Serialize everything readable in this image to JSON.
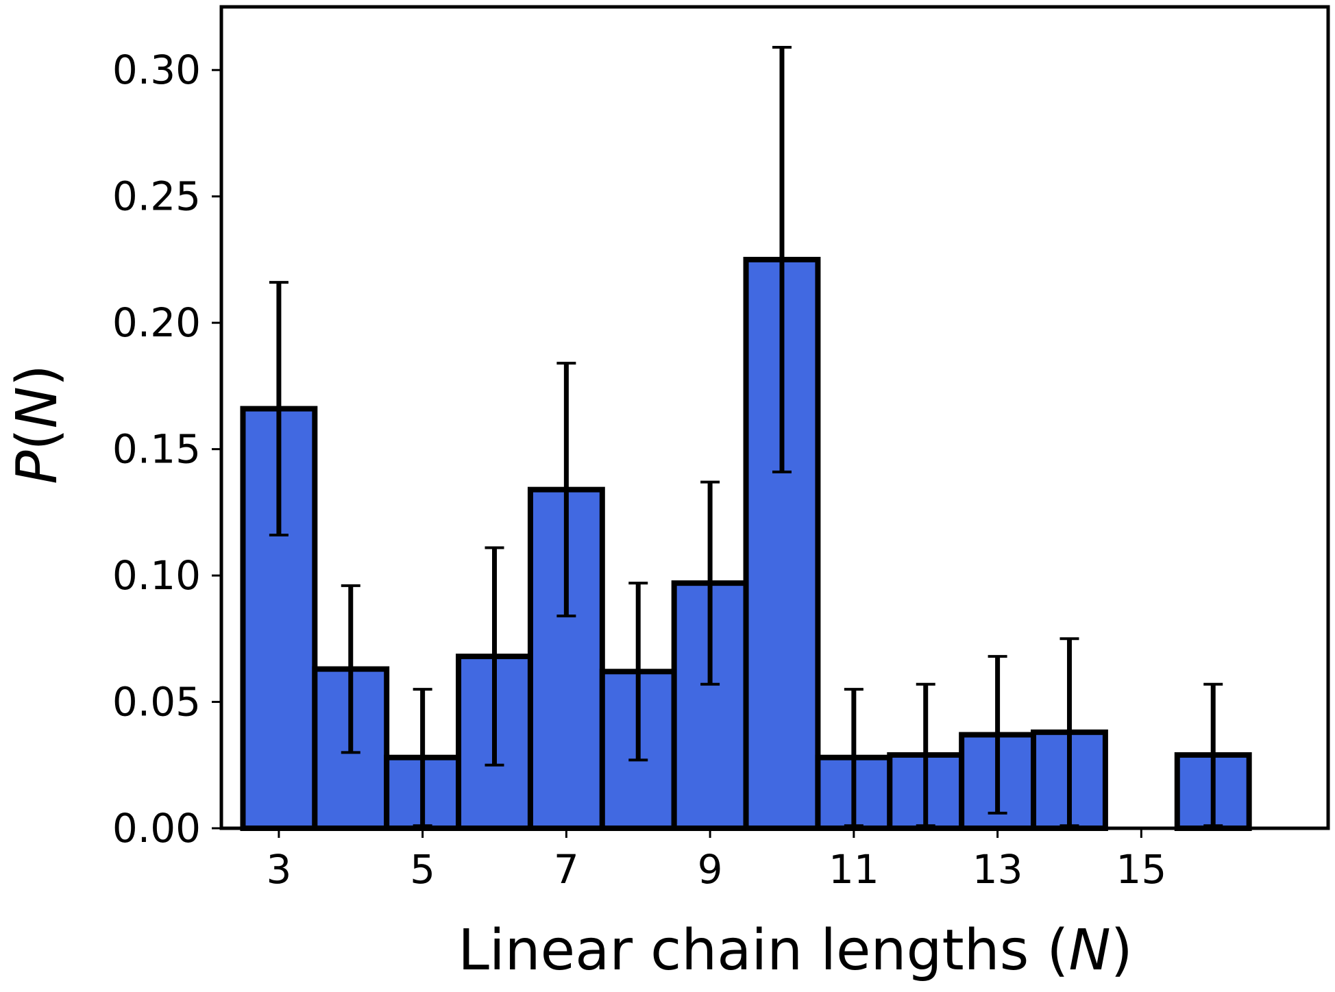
{
  "chart_data": {
    "type": "bar",
    "xlabel": {
      "prefix": "Linear chain lengths (",
      "variable": "N",
      "suffix": ")"
    },
    "ylabel": {
      "function": "P",
      "open": "(",
      "variable": "N",
      "close": ")"
    },
    "x": [
      3,
      4,
      5,
      6,
      7,
      8,
      9,
      10,
      11,
      12,
      13,
      14,
      15,
      16
    ],
    "values": [
      0.166,
      0.063,
      0.028,
      0.068,
      0.134,
      0.062,
      0.097,
      0.225,
      0.028,
      0.029,
      0.037,
      0.038,
      0.0,
      0.029
    ],
    "errors": [
      0.05,
      0.033,
      0.027,
      0.043,
      0.05,
      0.035,
      0.04,
      0.084,
      0.027,
      0.028,
      0.031,
      0.037,
      0.0,
      0.028
    ],
    "xlim": [
      2.2,
      17.6
    ],
    "ylim": [
      0.0,
      0.325
    ],
    "xticks": [
      3,
      5,
      7,
      9,
      11,
      13,
      15
    ],
    "xtick_labels": [
      "3",
      "5",
      "7",
      "9",
      "11",
      "13",
      "15"
    ],
    "yticks": [
      0.0,
      0.05,
      0.1,
      0.15,
      0.2,
      0.25,
      0.3
    ],
    "ytick_labels": [
      "0.00",
      "0.05",
      "0.10",
      "0.15",
      "0.20",
      "0.25",
      "0.30"
    ],
    "bar_color": "#4169E1",
    "edge_color": "#000000",
    "grid": false
  }
}
